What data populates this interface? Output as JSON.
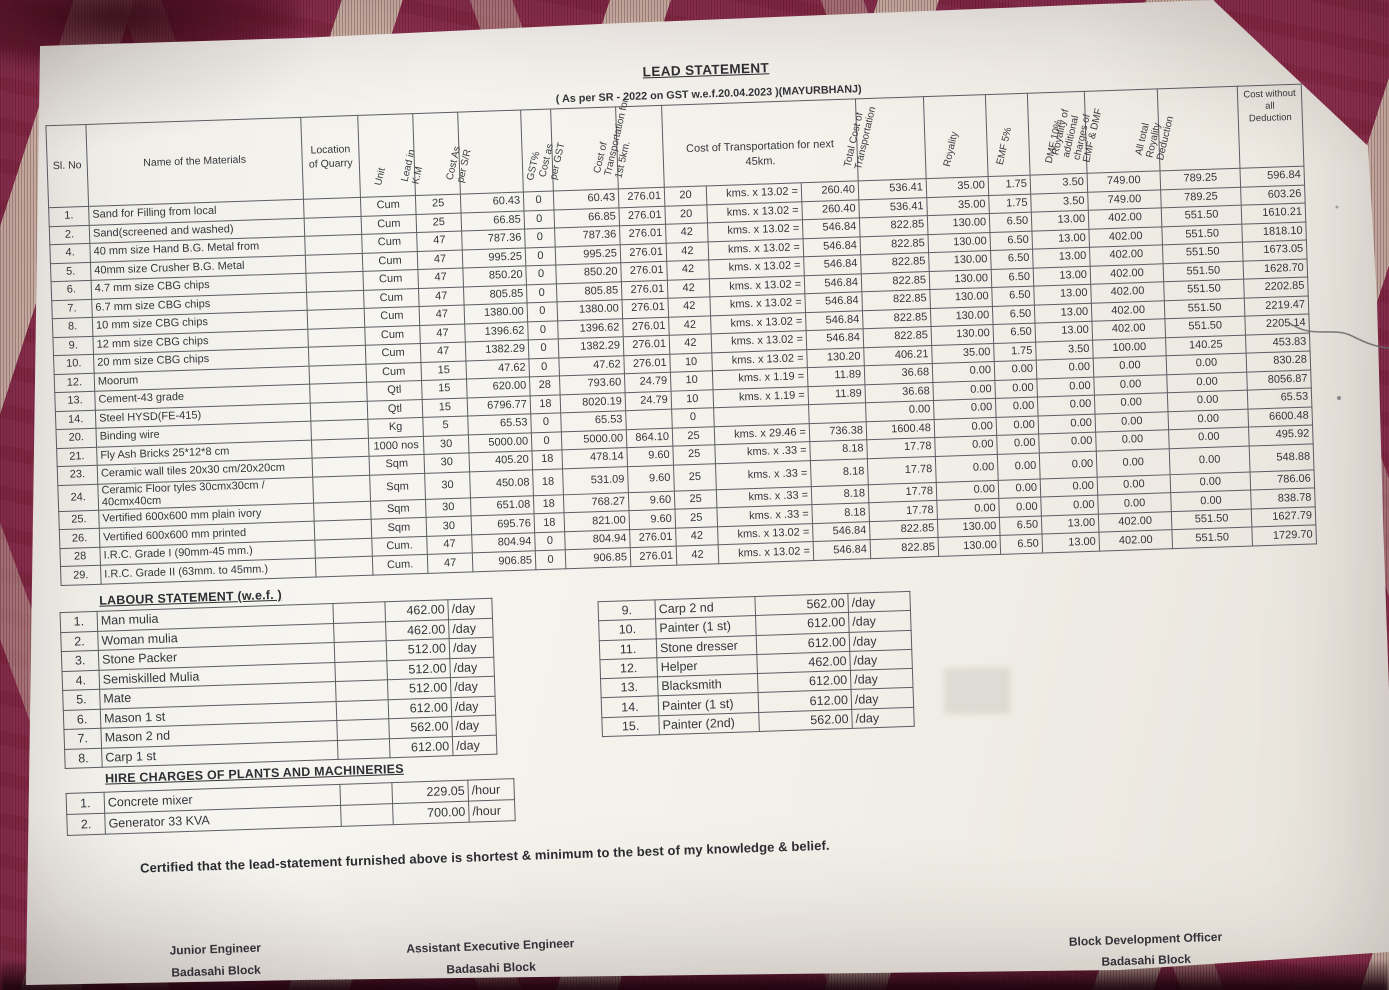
{
  "colors": {
    "fabric_maroon": "#8d3150",
    "paper": "#f4f2ec"
  },
  "title": "LEAD STATEMENT",
  "subtitle": "( As per SR - 2022 on GST w.e.f.20.04.2023 )(MAYURBHANJ)",
  "lead_table": {
    "header": {
      "static": [
        "Sl. No",
        "Name of the Materials",
        "Location of Quarry"
      ],
      "rotated_left": [
        "Unit",
        "Lead in K.M",
        "Cost As per S/R",
        "GST%",
        "Cost as per GST",
        "Cost of Transportation for 1st 5km."
      ],
      "next45": "Cost of Transportation for next 45km.",
      "rotated_right": [
        "Total Cost of Transportation",
        "Royality",
        "EMF 5%",
        "DMF 10%",
        "Royality of additional charges of EMF & DMF",
        "All total Royality Deduction"
      ],
      "last": "Cost without all Deduction"
    },
    "rows": [
      [
        "1.",
        "Sand for Filling  from local",
        "",
        "Cum",
        "25",
        "60.43",
        "0",
        "60.43",
        "276.01",
        "20",
        "kms. x 13.02 =",
        "260.40",
        "536.41",
        "35.00",
        "1.75",
        "3.50",
        "749.00",
        "789.25",
        "596.84"
      ],
      [
        "2.",
        "Sand(screened and washed)",
        "",
        "Cum",
        "25",
        "66.85",
        "0",
        "66.85",
        "276.01",
        "20",
        "kms. x 13.02 =",
        "260.40",
        "536.41",
        "35.00",
        "1.75",
        "3.50",
        "749.00",
        "789.25",
        "603.26"
      ],
      [
        "4.",
        "40 mm size Hand B.G. Metal from",
        "",
        "Cum",
        "47",
        "787.36",
        "0",
        "787.36",
        "276.01",
        "42",
        "kms. x 13.02 =",
        "546.84",
        "822.85",
        "130.00",
        "6.50",
        "13.00",
        "402.00",
        "551.50",
        "1610.21"
      ],
      [
        "5.",
        "40mm size Crusher B.G. Metal",
        "",
        "Cum",
        "47",
        "995.25",
        "0",
        "995.25",
        "276.01",
        "42",
        "kms. x 13.02 =",
        "546.84",
        "822.85",
        "130.00",
        "6.50",
        "13.00",
        "402.00",
        "551.50",
        "1818.10"
      ],
      [
        "6.",
        "4.7 mm size CBG chips",
        "",
        "Cum",
        "47",
        "850.20",
        "0",
        "850.20",
        "276.01",
        "42",
        "kms. x 13.02 =",
        "546.84",
        "822.85",
        "130.00",
        "6.50",
        "13.00",
        "402.00",
        "551.50",
        "1673.05"
      ],
      [
        "7.",
        "6.7 mm size CBG chips",
        "",
        "Cum",
        "47",
        "805.85",
        "0",
        "805.85",
        "276.01",
        "42",
        "kms. x 13.02 =",
        "546.84",
        "822.85",
        "130.00",
        "6.50",
        "13.00",
        "402.00",
        "551.50",
        "1628.70"
      ],
      [
        "8.",
        "10 mm size CBG chips",
        "",
        "Cum",
        "47",
        "1380.00",
        "0",
        "1380.00",
        "276.01",
        "42",
        "kms. x 13.02 =",
        "546.84",
        "822.85",
        "130.00",
        "6.50",
        "13.00",
        "402.00",
        "551.50",
        "2202.85"
      ],
      [
        "9.",
        "12 mm size CBG chips",
        "",
        "Cum",
        "47",
        "1396.62",
        "0",
        "1396.62",
        "276.01",
        "42",
        "kms. x 13.02 =",
        "546.84",
        "822.85",
        "130.00",
        "6.50",
        "13.00",
        "402.00",
        "551.50",
        "2219.47"
      ],
      [
        "10.",
        "20 mm size CBG chips",
        "",
        "Cum",
        "47",
        "1382.29",
        "0",
        "1382.29",
        "276.01",
        "42",
        "kms. x 13.02 =",
        "546.84",
        "822.85",
        "130.00",
        "6.50",
        "13.00",
        "402.00",
        "551.50",
        "2205.14"
      ],
      [
        "12.",
        "Moorum",
        "",
        "Cum",
        "15",
        "47.62",
        "0",
        "47.62",
        "276.01",
        "10",
        "kms. x 13.02 =",
        "130.20",
        "406.21",
        "35.00",
        "1.75",
        "3.50",
        "100.00",
        "140.25",
        "453.83"
      ],
      [
        "13.",
        "Cement-43 grade",
        "",
        "Qtl",
        "15",
        "620.00",
        "28",
        "793.60",
        "24.79",
        "10",
        "kms. x 1.19 =",
        "11.89",
        "36.68",
        "0.00",
        "0.00",
        "0.00",
        "0.00",
        "0.00",
        "830.28"
      ],
      [
        "14.",
        "Steel HYSD(FE-415)",
        "",
        "Qtl",
        "15",
        "6796.77",
        "18",
        "8020.19",
        "24.79",
        "10",
        "kms. x 1.19 =",
        "11.89",
        "36.68",
        "0.00",
        "0.00",
        "0.00",
        "0.00",
        "0.00",
        "8056.87"
      ],
      [
        "20.",
        "Binding wire",
        "",
        "Kg",
        "5",
        "65.53",
        "0",
        "65.53",
        "",
        "0",
        "",
        "",
        "0.00",
        "0.00",
        "0.00",
        "0.00",
        "0.00",
        "0.00",
        "65.53"
      ],
      [
        "21.",
        "Fly Ash Bricks 25*12*8 cm",
        "",
        "1000 nos",
        "30",
        "5000.00",
        "0",
        "5000.00",
        "864.10",
        "25",
        "kms. x 29.46 =",
        "736.38",
        "1600.48",
        "0.00",
        "0.00",
        "0.00",
        "0.00",
        "0.00",
        "6600.48"
      ],
      [
        "23.",
        "Ceramic wall tiles 20x30 cm/20x20cm",
        "",
        "Sqm",
        "30",
        "405.20",
        "18",
        "478.14",
        "9.60",
        "25",
        "kms. x .33 =",
        "8.18",
        "17.78",
        "0.00",
        "0.00",
        "0.00",
        "0.00",
        "0.00",
        "495.92"
      ],
      [
        "24.",
        "Ceramic Floor tyles 30cmx30cm /\n40cmx40cm",
        "",
        "Sqm",
        "30",
        "450.08",
        "18",
        "531.09",
        "9.60",
        "25",
        "kms. x .33 =",
        "8.18",
        "17.78",
        "0.00",
        "0.00",
        "0.00",
        "0.00",
        "0.00",
        "548.88"
      ],
      [
        "25.",
        "Vertified 600x600 mm plain ivory",
        "",
        "Sqm",
        "30",
        "651.08",
        "18",
        "768.27",
        "9.60",
        "25",
        "kms. x .33 =",
        "8.18",
        "17.78",
        "0.00",
        "0.00",
        "0.00",
        "0.00",
        "0.00",
        "786.06"
      ],
      [
        "26.",
        "Vertified 600x600 mm printed",
        "",
        "Sqm",
        "30",
        "695.76",
        "18",
        "821.00",
        "9.60",
        "25",
        "kms. x .33 =",
        "8.18",
        "17.78",
        "0.00",
        "0.00",
        "0.00",
        "0.00",
        "0.00",
        "838.78"
      ],
      [
        "28",
        "I.R.C. Grade I (90mm-45 mm.)",
        "",
        "Cum.",
        "47",
        "804.94",
        "0",
        "804.94",
        "276.01",
        "42",
        "kms. x 13.02 =",
        "546.84",
        "822.85",
        "130.00",
        "6.50",
        "13.00",
        "402.00",
        "551.50",
        "1627.79"
      ],
      [
        "29.",
        "I.R.C. Grade II (63mm. to 45mm.)",
        "",
        "Cum.",
        "47",
        "906.85",
        "0",
        "906.85",
        "276.01",
        "42",
        "kms. x 13.02 =",
        "546.84",
        "822.85",
        "130.00",
        "6.50",
        "13.00",
        "402.00",
        "551.50",
        "1729.70"
      ]
    ]
  },
  "labour": {
    "heading": "LABOUR STATEMENT (w.e.f. )",
    "left_rows": [
      [
        "1.",
        "Man mulia",
        "462.00",
        "/day"
      ],
      [
        "2.",
        "Woman mulia",
        "462.00",
        "/day"
      ],
      [
        "3.",
        "Stone Packer",
        "512.00",
        "/day"
      ],
      [
        "4.",
        "Semiskilled Mulia",
        "512.00",
        "/day"
      ],
      [
        "5.",
        "Mate",
        "512.00",
        "/day"
      ],
      [
        "6.",
        "Mason 1 st",
        "612.00",
        "/day"
      ],
      [
        "7.",
        "Mason 2 nd",
        "562.00",
        "/day"
      ],
      [
        "8.",
        "Carp 1 st",
        "612.00",
        "/day"
      ]
    ],
    "right_rows": [
      [
        "9.",
        "Carp 2 nd",
        "562.00",
        "/day"
      ],
      [
        "10.",
        "Painter (1 st)",
        "612.00",
        "/day"
      ],
      [
        "11.",
        "Stone dresser",
        "612.00",
        "/day"
      ],
      [
        "12.",
        "Helper",
        "462.00",
        "/day"
      ],
      [
        "13.",
        "Blacksmith",
        "612.00",
        "/day"
      ],
      [
        "14.",
        "Painter (1 st)",
        "612.00",
        "/day"
      ],
      [
        "15.",
        "Painter (2nd)",
        "562.00",
        "/day"
      ]
    ]
  },
  "hire": {
    "heading": "HIRE CHARGES OF PLANTS AND MACHINERIES",
    "rows": [
      [
        "1.",
        "Concrete mixer",
        "229.05",
        "/hour"
      ],
      [
        "2.",
        "Generator 33 KVA",
        "700.00",
        "/hour"
      ]
    ]
  },
  "certification": "Certified that the lead-statement furnished above is shortest & minimum to the best  of my knowledge & belief.",
  "signatures": [
    {
      "title": "Junior Engineer",
      "block": "Badasahi Block"
    },
    {
      "title": "Assistant  Executive  Engineer",
      "block": "Badasahi Block"
    },
    {
      "title": "Block Development Officer",
      "block": "Badasahi Block"
    }
  ]
}
